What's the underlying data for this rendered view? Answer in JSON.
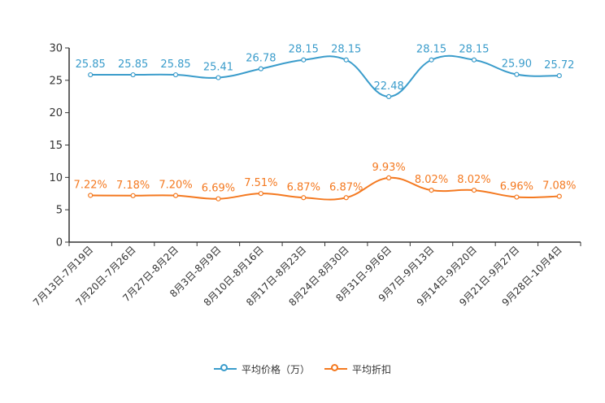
{
  "chart_data": {
    "type": "line",
    "categories": [
      "7月13日-7月19日",
      "7月20日-7月26日",
      "7月27日-8月2日",
      "8月3日-8月9日",
      "8月10日-8月16日",
      "8月17日-8月23日",
      "8月24日-8月30日",
      "8月31日-9月6日",
      "9月7日-9月13日",
      "9月14日-9月20日",
      "9月21日-9月27日",
      "9月28日-10月4日"
    ],
    "ylim": [
      0,
      30
    ],
    "yticks": [
      0,
      5,
      10,
      15,
      20,
      25,
      30
    ],
    "series": [
      {
        "name": "平均价格（万）",
        "color": "#3a9ccb",
        "values": [
          25.85,
          25.85,
          25.85,
          25.41,
          26.78,
          28.15,
          28.15,
          22.48,
          28.15,
          28.15,
          25.9,
          25.72
        ],
        "labels": [
          "25.85",
          "25.85",
          "25.85",
          "25.41",
          "26.78",
          "28.15",
          "28.15",
          "22.48",
          "28.15",
          "28.15",
          "25.90",
          "25.72"
        ]
      },
      {
        "name": "平均折扣",
        "color": "#f47920",
        "values": [
          7.22,
          7.18,
          7.2,
          6.69,
          7.51,
          6.87,
          6.87,
          9.93,
          8.02,
          8.02,
          6.96,
          7.08
        ],
        "labels": [
          "7.22%",
          "7.18%",
          "7.20%",
          "6.69%",
          "7.51%",
          "6.87%",
          "6.87%",
          "9.93%",
          "8.02%",
          "8.02%",
          "6.96%",
          "7.08%"
        ]
      }
    ]
  },
  "legend": {
    "items": [
      {
        "label": "平均价格（万）",
        "color": "#3a9ccb"
      },
      {
        "label": "平均折扣",
        "color": "#f47920"
      }
    ]
  }
}
